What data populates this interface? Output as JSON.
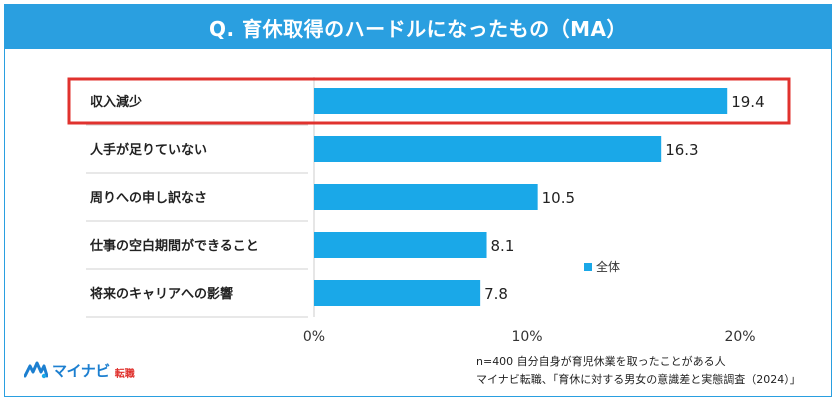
{
  "title": "Q. 育休取得のハードルになったもの（MA）",
  "chart_data": {
    "type": "bar",
    "orientation": "horizontal",
    "categories": [
      "収入減少",
      "人手が足りていない",
      "周りへの申し訳なさ",
      "仕事の空白期間ができること",
      "将来のキャリアへの影響"
    ],
    "series": [
      {
        "name": "全体",
        "values": [
          19.4,
          16.3,
          10.5,
          8.1,
          7.8
        ]
      }
    ],
    "value_labels": [
      "19.4",
      "16.3",
      "10.5",
      "8.1",
      "7.8"
    ],
    "x_ticks": [
      "0%",
      "10%",
      "20%"
    ],
    "xlim": [
      0,
      20
    ],
    "highlighted_category": "収入減少",
    "legend_position": "right",
    "bar_color": "#1aa8e8",
    "highlight_color": "#e0322e"
  },
  "footer": {
    "note_line1": "n=400 自分自身が育児休業を取ったことがある人",
    "note_line2": "マイナビ転職、「育休に対する男女の意識差と実態調査（2024）」"
  },
  "logo": {
    "brand": "マイナビ",
    "sub": "転職",
    "brand_color": "#1c7fd0"
  }
}
